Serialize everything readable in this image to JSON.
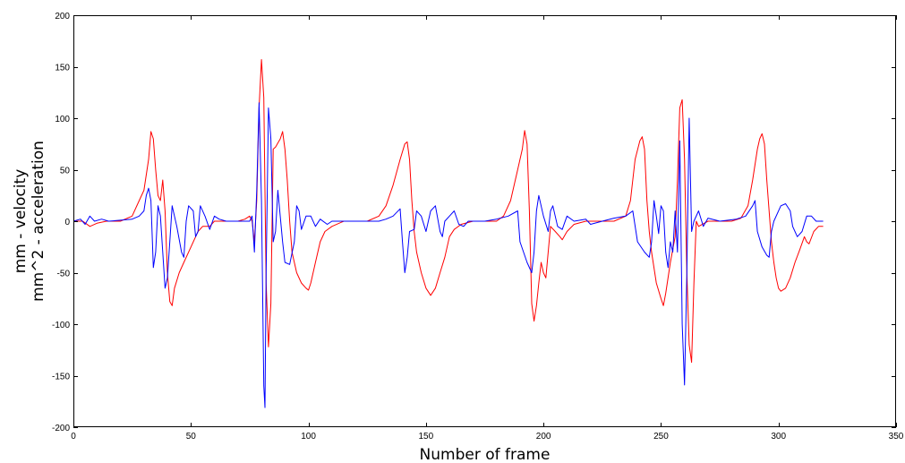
{
  "chart_data": {
    "type": "line",
    "title": "",
    "xlabel": "Number of frame",
    "ylabel_lines": [
      "mm - velocity",
      "mm^2 - acceleration"
    ],
    "xlim": [
      0,
      350
    ],
    "ylim": [
      -200,
      200
    ],
    "xticks": [
      0,
      50,
      100,
      150,
      200,
      250,
      300,
      350
    ],
    "yticks": [
      -200,
      -150,
      -100,
      -50,
      0,
      50,
      100,
      150,
      200
    ],
    "grid": false,
    "legend": "none",
    "series": [
      {
        "color": "#ff0000",
        "points": [
          [
            0,
            0
          ],
          [
            4,
            0
          ],
          [
            7,
            -5
          ],
          [
            10,
            -2
          ],
          [
            14,
            0
          ],
          [
            20,
            0
          ],
          [
            25,
            5
          ],
          [
            28,
            20
          ],
          [
            30,
            30
          ],
          [
            32,
            60
          ],
          [
            33,
            87
          ],
          [
            34,
            80
          ],
          [
            35,
            50
          ],
          [
            36,
            25
          ],
          [
            37,
            20
          ],
          [
            38,
            40
          ],
          [
            39,
            10
          ],
          [
            40,
            -50
          ],
          [
            41,
            -78
          ],
          [
            42,
            -82
          ],
          [
            43,
            -65
          ],
          [
            45,
            -50
          ],
          [
            47,
            -40
          ],
          [
            50,
            -25
          ],
          [
            53,
            -10
          ],
          [
            55,
            -5
          ],
          [
            58,
            -5
          ],
          [
            60,
            0
          ],
          [
            65,
            0
          ],
          [
            70,
            0
          ],
          [
            73,
            2
          ],
          [
            75,
            5
          ],
          [
            76,
            0
          ],
          [
            77,
            -20
          ],
          [
            78,
            20
          ],
          [
            79,
            110
          ],
          [
            80,
            157
          ],
          [
            81,
            120
          ],
          [
            82,
            -60
          ],
          [
            83,
            -122
          ],
          [
            84,
            -80
          ],
          [
            85,
            70
          ],
          [
            86,
            72
          ],
          [
            88,
            80
          ],
          [
            89,
            87
          ],
          [
            90,
            70
          ],
          [
            91,
            40
          ],
          [
            92,
            0
          ],
          [
            93,
            -30
          ],
          [
            95,
            -50
          ],
          [
            97,
            -60
          ],
          [
            99,
            -65
          ],
          [
            100,
            -67
          ],
          [
            101,
            -60
          ],
          [
            103,
            -40
          ],
          [
            105,
            -20
          ],
          [
            107,
            -10
          ],
          [
            110,
            -5
          ],
          [
            115,
            0
          ],
          [
            125,
            0
          ],
          [
            130,
            5
          ],
          [
            133,
            15
          ],
          [
            136,
            35
          ],
          [
            139,
            60
          ],
          [
            141,
            75
          ],
          [
            142,
            77
          ],
          [
            143,
            60
          ],
          [
            144,
            20
          ],
          [
            145,
            -10
          ],
          [
            146,
            -30
          ],
          [
            148,
            -50
          ],
          [
            150,
            -65
          ],
          [
            152,
            -72
          ],
          [
            154,
            -65
          ],
          [
            156,
            -50
          ],
          [
            158,
            -35
          ],
          [
            160,
            -15
          ],
          [
            162,
            -8
          ],
          [
            165,
            -3
          ],
          [
            170,
            0
          ],
          [
            180,
            0
          ],
          [
            183,
            5
          ],
          [
            186,
            20
          ],
          [
            189,
            50
          ],
          [
            191,
            70
          ],
          [
            192,
            88
          ],
          [
            193,
            75
          ],
          [
            194,
            10
          ],
          [
            195,
            -80
          ],
          [
            196,
            -97
          ],
          [
            197,
            -82
          ],
          [
            198,
            -60
          ],
          [
            199,
            -40
          ],
          [
            200,
            -50
          ],
          [
            201,
            -55
          ],
          [
            202,
            -30
          ],
          [
            203,
            -5
          ],
          [
            205,
            -10
          ],
          [
            207,
            -15
          ],
          [
            208,
            -18
          ],
          [
            210,
            -10
          ],
          [
            213,
            -3
          ],
          [
            218,
            0
          ],
          [
            230,
            0
          ],
          [
            235,
            5
          ],
          [
            237,
            20
          ],
          [
            239,
            60
          ],
          [
            241,
            78
          ],
          [
            242,
            82
          ],
          [
            243,
            70
          ],
          [
            244,
            20
          ],
          [
            245,
            -10
          ],
          [
            246,
            -30
          ],
          [
            248,
            -60
          ],
          [
            250,
            -75
          ],
          [
            251,
            -82
          ],
          [
            252,
            -70
          ],
          [
            254,
            -40
          ],
          [
            256,
            -15
          ],
          [
            257,
            40
          ],
          [
            258,
            110
          ],
          [
            259,
            118
          ],
          [
            260,
            60
          ],
          [
            261,
            -50
          ],
          [
            262,
            -120
          ],
          [
            263,
            -137
          ],
          [
            264,
            -60
          ],
          [
            265,
            0
          ],
          [
            266,
            -5
          ],
          [
            270,
            0
          ],
          [
            280,
            0
          ],
          [
            284,
            3
          ],
          [
            287,
            15
          ],
          [
            289,
            40
          ],
          [
            291,
            70
          ],
          [
            292,
            80
          ],
          [
            293,
            85
          ],
          [
            294,
            75
          ],
          [
            295,
            40
          ],
          [
            296,
            10
          ],
          [
            297,
            -20
          ],
          [
            298,
            -40
          ],
          [
            299,
            -55
          ],
          [
            300,
            -65
          ],
          [
            301,
            -68
          ],
          [
            303,
            -65
          ],
          [
            305,
            -55
          ],
          [
            307,
            -40
          ],
          [
            309,
            -28
          ],
          [
            311,
            -15
          ],
          [
            312,
            -20
          ],
          [
            313,
            -22
          ],
          [
            315,
            -10
          ],
          [
            317,
            -5
          ],
          [
            319,
            -5
          ]
        ]
      },
      {
        "color": "#0000ff",
        "points": [
          [
            0,
            0
          ],
          [
            3,
            2
          ],
          [
            5,
            -3
          ],
          [
            7,
            5
          ],
          [
            9,
            0
          ],
          [
            12,
            2
          ],
          [
            15,
            0
          ],
          [
            20,
            1
          ],
          [
            25,
            2
          ],
          [
            28,
            5
          ],
          [
            30,
            10
          ],
          [
            31,
            25
          ],
          [
            32,
            32
          ],
          [
            33,
            20
          ],
          [
            34,
            -45
          ],
          [
            35,
            -30
          ],
          [
            36,
            15
          ],
          [
            37,
            5
          ],
          [
            38,
            -30
          ],
          [
            39,
            -65
          ],
          [
            40,
            -55
          ],
          [
            41,
            -20
          ],
          [
            42,
            15
          ],
          [
            44,
            -5
          ],
          [
            46,
            -30
          ],
          [
            47,
            -35
          ],
          [
            48,
            0
          ],
          [
            49,
            15
          ],
          [
            51,
            10
          ],
          [
            52,
            -15
          ],
          [
            53,
            -10
          ],
          [
            54,
            15
          ],
          [
            56,
            5
          ],
          [
            58,
            -8
          ],
          [
            60,
            5
          ],
          [
            62,
            2
          ],
          [
            65,
            0
          ],
          [
            70,
            0
          ],
          [
            75,
            0
          ],
          [
            76,
            5
          ],
          [
            77,
            -30
          ],
          [
            78,
            30
          ],
          [
            79,
            115
          ],
          [
            80,
            20
          ],
          [
            81,
            -160
          ],
          [
            81.5,
            -181
          ],
          [
            82,
            -50
          ],
          [
            83,
            110
          ],
          [
            84,
            80
          ],
          [
            85,
            -20
          ],
          [
            86,
            -10
          ],
          [
            87,
            30
          ],
          [
            89,
            -20
          ],
          [
            90,
            -40
          ],
          [
            92,
            -42
          ],
          [
            94,
            -20
          ],
          [
            95,
            15
          ],
          [
            96,
            10
          ],
          [
            97,
            -8
          ],
          [
            99,
            5
          ],
          [
            101,
            5
          ],
          [
            103,
            -5
          ],
          [
            105,
            2
          ],
          [
            108,
            -3
          ],
          [
            110,
            0
          ],
          [
            120,
            0
          ],
          [
            130,
            0
          ],
          [
            133,
            2
          ],
          [
            136,
            5
          ],
          [
            139,
            12
          ],
          [
            140,
            -20
          ],
          [
            141,
            -50
          ],
          [
            142,
            -35
          ],
          [
            143,
            -10
          ],
          [
            145,
            -8
          ],
          [
            146,
            10
          ],
          [
            148,
            5
          ],
          [
            150,
            -10
          ],
          [
            152,
            10
          ],
          [
            154,
            15
          ],
          [
            156,
            -10
          ],
          [
            157,
            -15
          ],
          [
            158,
            0
          ],
          [
            160,
            5
          ],
          [
            162,
            10
          ],
          [
            164,
            -3
          ],
          [
            166,
            -5
          ],
          [
            168,
            0
          ],
          [
            175,
            0
          ],
          [
            180,
            2
          ],
          [
            185,
            5
          ],
          [
            189,
            10
          ],
          [
            190,
            -20
          ],
          [
            193,
            -40
          ],
          [
            195,
            -50
          ],
          [
            196,
            -30
          ],
          [
            197,
            10
          ],
          [
            198,
            25
          ],
          [
            200,
            5
          ],
          [
            202,
            -10
          ],
          [
            203,
            10
          ],
          [
            204,
            15
          ],
          [
            206,
            -5
          ],
          [
            208,
            -8
          ],
          [
            210,
            5
          ],
          [
            213,
            0
          ],
          [
            218,
            2
          ],
          [
            220,
            -3
          ],
          [
            225,
            0
          ],
          [
            230,
            3
          ],
          [
            235,
            5
          ],
          [
            238,
            10
          ],
          [
            240,
            -20
          ],
          [
            243,
            -30
          ],
          [
            245,
            -35
          ],
          [
            246,
            -20
          ],
          [
            247,
            20
          ],
          [
            248,
            5
          ],
          [
            249,
            -12
          ],
          [
            250,
            15
          ],
          [
            251,
            10
          ],
          [
            252,
            -30
          ],
          [
            253,
            -45
          ],
          [
            254,
            -20
          ],
          [
            255,
            -30
          ],
          [
            256,
            10
          ],
          [
            257,
            -30
          ],
          [
            258,
            78
          ],
          [
            259,
            -100
          ],
          [
            260,
            -159
          ],
          [
            261,
            -50
          ],
          [
            262,
            100
          ],
          [
            263,
            -10
          ],
          [
            264,
            0
          ],
          [
            266,
            10
          ],
          [
            268,
            -5
          ],
          [
            270,
            3
          ],
          [
            275,
            0
          ],
          [
            282,
            2
          ],
          [
            286,
            5
          ],
          [
            289,
            15
          ],
          [
            290,
            20
          ],
          [
            291,
            -10
          ],
          [
            293,
            -25
          ],
          [
            295,
            -33
          ],
          [
            296,
            -35
          ],
          [
            297,
            -10
          ],
          [
            298,
            0
          ],
          [
            301,
            15
          ],
          [
            303,
            17
          ],
          [
            305,
            10
          ],
          [
            306,
            -5
          ],
          [
            308,
            -15
          ],
          [
            310,
            -10
          ],
          [
            312,
            5
          ],
          [
            314,
            5
          ],
          [
            316,
            0
          ],
          [
            319,
            0
          ]
        ]
      }
    ]
  }
}
